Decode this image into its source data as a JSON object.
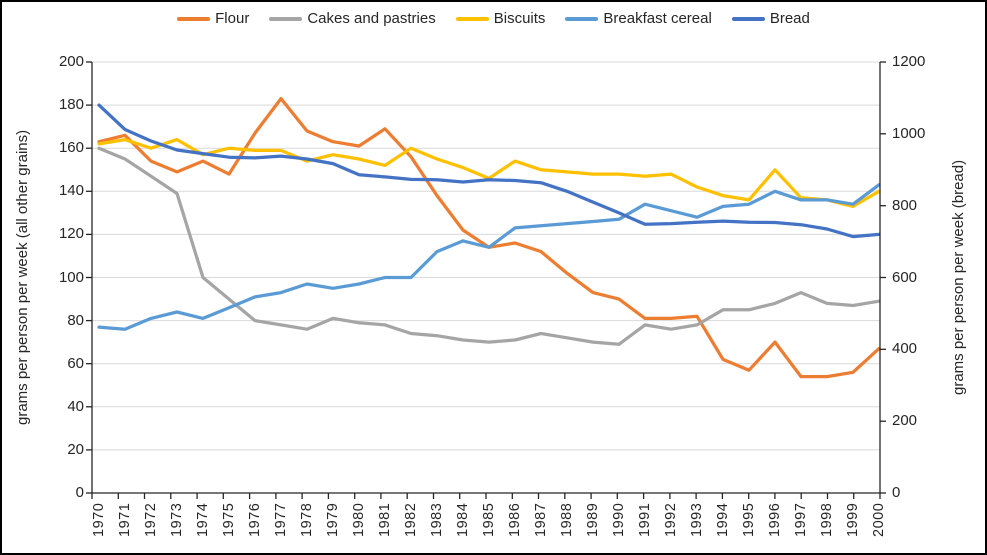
{
  "legend": {
    "items": [
      {
        "label": "Flour",
        "color": "#ED7D31"
      },
      {
        "label": "Cakes and pastries",
        "color": "#A5A5A5"
      },
      {
        "label": "Biscuits",
        "color": "#FFC000"
      },
      {
        "label": "Breakfast cereal",
        "color": "#5B9BD5"
      },
      {
        "label": "Bread",
        "color": "#4472C4"
      }
    ]
  },
  "axes": {
    "left": {
      "title": "grams per person per week (all other grains)",
      "ticks": [
        0,
        20,
        40,
        60,
        80,
        100,
        120,
        140,
        160,
        180,
        200
      ],
      "range": [
        0,
        200
      ]
    },
    "right": {
      "title": "grams per person per week (bread)",
      "ticks": [
        0,
        200,
        400,
        600,
        800,
        1000,
        1200
      ],
      "range": [
        0,
        1200
      ]
    },
    "x": {
      "ticks": [
        "1970",
        "1971",
        "1972",
        "1973",
        "1974",
        "1975",
        "1976",
        "1977",
        "1978",
        "1979",
        "1980",
        "1981",
        "1982",
        "1983",
        "1984",
        "1985",
        "1986",
        "1987",
        "1988",
        "1989",
        "1990",
        "1991",
        "1992",
        "1993",
        "1994",
        "1995",
        "1996",
        "1997",
        "1998",
        "1999",
        "2000"
      ]
    }
  },
  "chart_data": {
    "type": "line",
    "title": "",
    "xlabel": "",
    "ylabel_left": "grams per person per week (all other grains)",
    "ylabel_right": "grams per person per week (bread)",
    "x": [
      1970,
      1971,
      1972,
      1973,
      1974,
      1975,
      1976,
      1977,
      1978,
      1979,
      1980,
      1981,
      1982,
      1983,
      1984,
      1985,
      1986,
      1987,
      1988,
      1989,
      1990,
      1991,
      1992,
      1993,
      1994,
      1995,
      1996,
      1997,
      1998,
      1999,
      2000
    ],
    "ylim_left": [
      0,
      200
    ],
    "ylim_right": [
      0,
      1200
    ],
    "grid": true,
    "legend_position": "top",
    "series": [
      {
        "name": "Flour",
        "axis": "left",
        "color": "#ED7D31",
        "values": [
          163,
          166,
          154,
          149,
          154,
          148,
          167,
          183,
          168,
          163,
          161,
          169,
          156,
          138,
          122,
          114,
          116,
          112,
          102,
          93,
          90,
          81,
          81,
          82,
          62,
          57,
          70,
          54,
          54,
          56,
          67
        ]
      },
      {
        "name": "Cakes and pastries",
        "axis": "left",
        "color": "#A5A5A5",
        "values": [
          160,
          155,
          147,
          139,
          100,
          90,
          80,
          78,
          76,
          81,
          79,
          78,
          74,
          73,
          71,
          70,
          71,
          74,
          72,
          70,
          69,
          78,
          76,
          78,
          85,
          85,
          88,
          93,
          88,
          87,
          89
        ]
      },
      {
        "name": "Biscuits",
        "axis": "left",
        "color": "#FFC000",
        "values": [
          162,
          164,
          160,
          164,
          157,
          160,
          159,
          159,
          154,
          157,
          155,
          152,
          160,
          155,
          151,
          146,
          154,
          150,
          149,
          148,
          148,
          147,
          148,
          142,
          138,
          136,
          150,
          137,
          136,
          133,
          140
        ]
      },
      {
        "name": "Breakfast cereal",
        "axis": "left",
        "color": "#5B9BD5",
        "values": [
          77,
          76,
          81,
          84,
          81,
          86,
          91,
          93,
          97,
          95,
          97,
          100,
          100,
          112,
          117,
          114,
          123,
          124,
          125,
          126,
          127,
          134,
          131,
          128,
          133,
          134,
          140,
          136,
          136,
          134,
          143
        ]
      },
      {
        "name": "Bread",
        "axis": "right",
        "color": "#4472C4",
        "values": [
          1080,
          1012,
          980,
          955,
          945,
          935,
          933,
          938,
          930,
          917,
          886,
          880,
          873,
          872,
          866,
          872,
          870,
          864,
          840,
          810,
          780,
          748,
          750,
          754,
          757,
          754,
          753,
          747,
          735,
          714,
          720
        ]
      }
    ],
    "colors": {
      "gridline": "#D9D9D9",
      "axis_line": "#262626",
      "text": "#262626"
    }
  }
}
